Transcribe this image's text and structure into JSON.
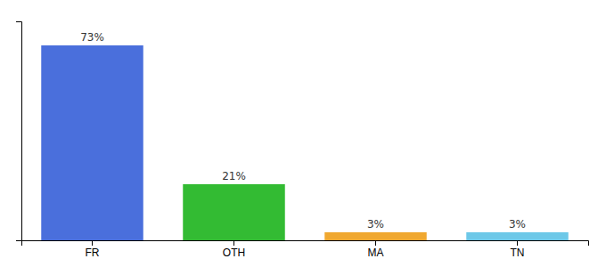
{
  "chart_data": {
    "type": "bar",
    "categories": [
      "FR",
      "OTH",
      "MA",
      "TN"
    ],
    "values": [
      73,
      21,
      3,
      3
    ],
    "value_labels": [
      "73%",
      "21%",
      "3%",
      "3%"
    ],
    "colors": [
      "#4a6fdc",
      "#33bb33",
      "#f0a830",
      "#6dc8e8"
    ],
    "ylim": [
      0,
      82
    ],
    "yticks": [],
    "data_labels": true,
    "tick_labels": "x",
    "grid": false
  }
}
